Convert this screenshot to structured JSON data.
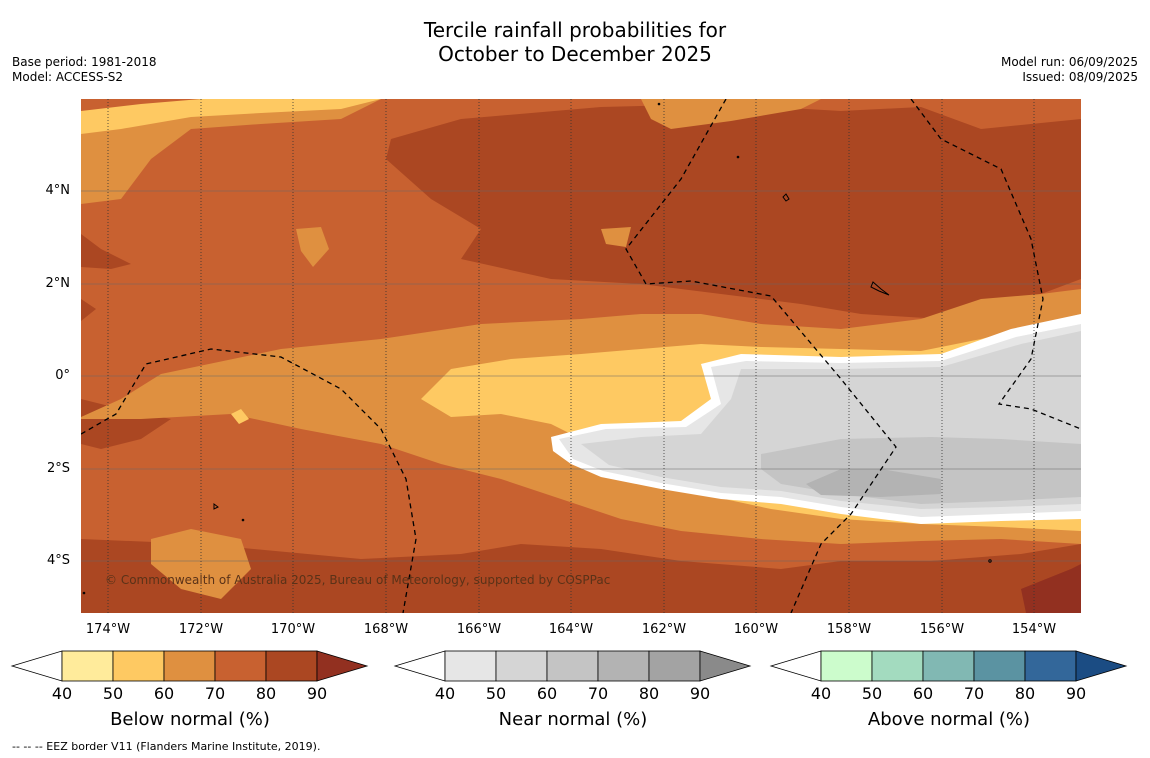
{
  "title_line1": "Tercile rainfall probabilities for",
  "title_line2": "October to December 2025",
  "meta_left": [
    "Base period: 1981-2018",
    "Model: ACCESS-S2"
  ],
  "meta_right": [
    "Model run: 06/09/2025",
    "Issued: 08/09/2025"
  ],
  "copyright": "© Commonwealth of Australia 2025, Bureau of Meteorology, supported by COSPPac",
  "y_ticks": [
    "4°N",
    "2°N",
    "0°",
    "2°S",
    "4°S"
  ],
  "x_ticks": [
    "174°W",
    "172°W",
    "170°W",
    "168°W",
    "166°W",
    "164°W",
    "162°W",
    "160°W",
    "158°W",
    "156°W",
    "154°W"
  ],
  "colorbars": [
    {
      "label": "Below normal (%)",
      "ticks": [
        "40",
        "50",
        "60",
        "70",
        "80",
        "90"
      ],
      "colors": [
        "#ffffff",
        "#ffeb9b",
        "#fec962",
        "#df9040",
        "#c86130",
        "#ab4722",
        "#923020"
      ]
    },
    {
      "label": "Near normal (%)",
      "ticks": [
        "40",
        "50",
        "60",
        "70",
        "80",
        "90"
      ],
      "colors": [
        "#ffffff",
        "#e6e6e6",
        "#d5d5d5",
        "#c4c4c4",
        "#b3b3b3",
        "#a3a3a3",
        "#8a8a8a"
      ]
    },
    {
      "label": "Above normal (%)",
      "ticks": [
        "40",
        "50",
        "60",
        "70",
        "80",
        "90"
      ],
      "colors": [
        "#ffffff",
        "#ccfccc",
        "#a3dbbf",
        "#81b8b3",
        "#5b93a2",
        "#33679a",
        "#1b4c83"
      ]
    }
  ],
  "footnote": "-- -- -- EEZ border V11 (Flanders Marine Institute, 2019).",
  "map_colors": {
    "c50": "#ffeb9b",
    "c60": "#fec962",
    "c70": "#df9040",
    "c80": "#c86130",
    "c90": "#ab4722",
    "c100": "#923020",
    "n50": "#e6e6e6",
    "n60": "#d5d5d5",
    "n70": "#c4c4c4",
    "n80": "#b3b3b3",
    "blank": "#ffffff"
  }
}
